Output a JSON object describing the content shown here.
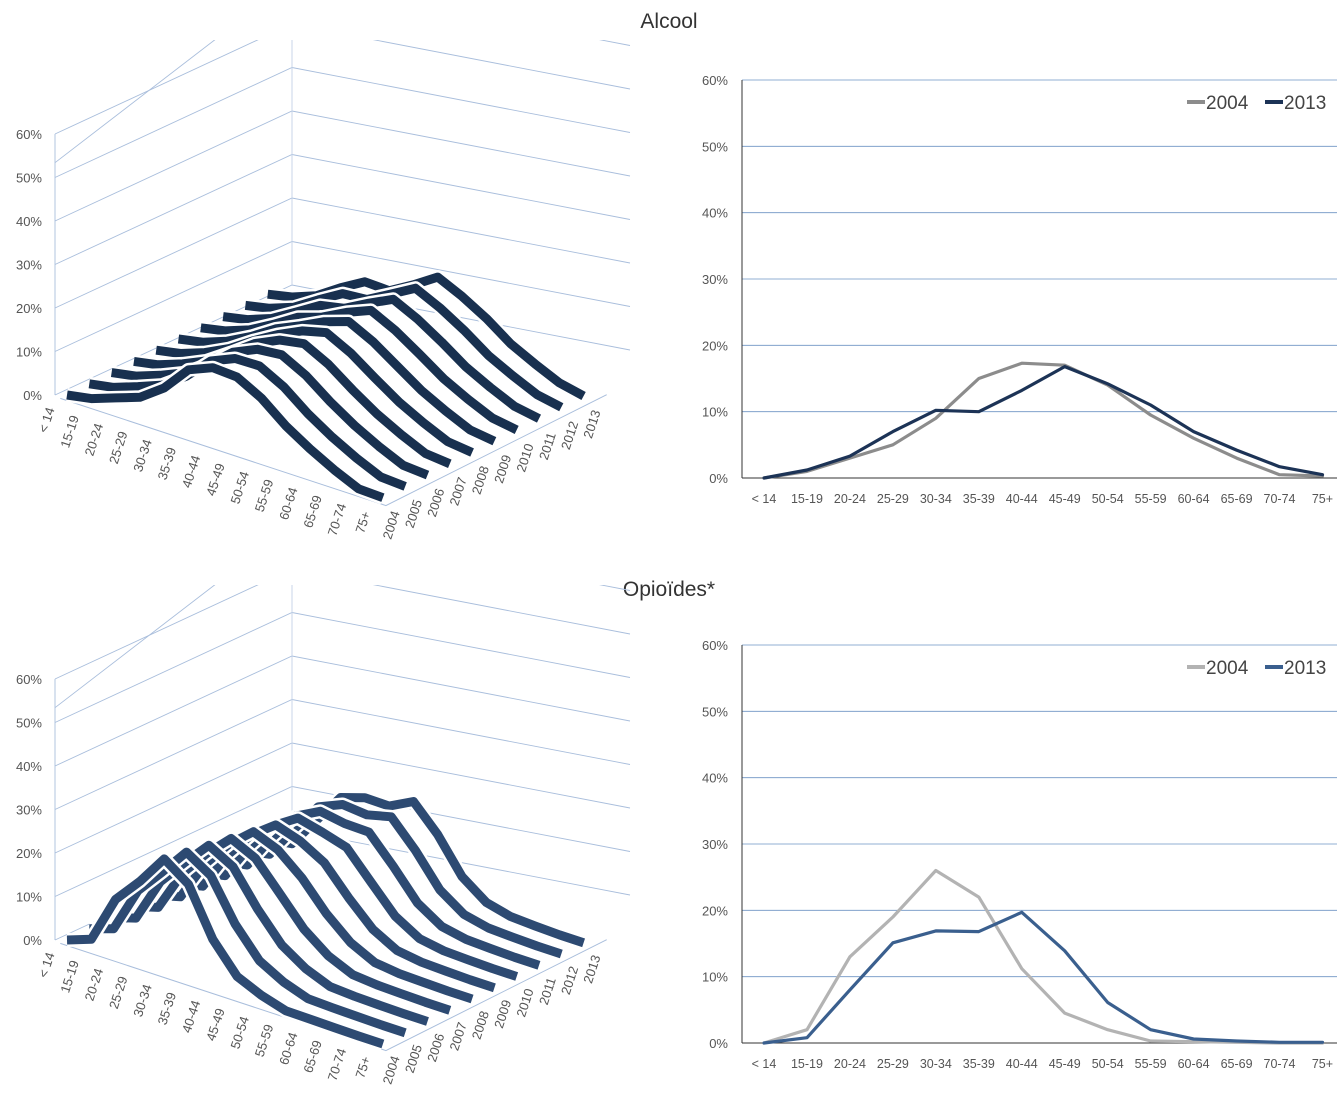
{
  "sections": [
    {
      "title": "Alcool",
      "line_colors": {
        "2004": "#8c8c8c",
        "2013": "#1c3356"
      },
      "ribbon_color": "#18304f"
    },
    {
      "title": "Opioïdes*",
      "line_colors": {
        "2004": "#b3b3b3",
        "2013": "#3a5f8e"
      },
      "ribbon_color": "#2d4a72"
    }
  ],
  "chart_data": [
    {
      "type": "surface3d",
      "section": "Alcool",
      "categories": [
        "< 14",
        "15-19",
        "20-24",
        "25-29",
        "30-34",
        "35-39",
        "40-44",
        "45-49",
        "50-54",
        "55-59",
        "60-64",
        "65-69",
        "70-74",
        "75+"
      ],
      "years": [
        "2004",
        "2005",
        "2006",
        "2007",
        "2008",
        "2009",
        "2010",
        "2011",
        "2012",
        "2013"
      ],
      "yticks": [
        "0%",
        "10%",
        "20%",
        "30%",
        "40%",
        "50%",
        "60%"
      ],
      "ylim": [
        0,
        60
      ]
    },
    {
      "type": "line",
      "section": "Alcool",
      "categories": [
        "< 14",
        "15-19",
        "20-24",
        "25-29",
        "30-34",
        "35-39",
        "40-44",
        "45-49",
        "50-54",
        "55-59",
        "60-64",
        "65-69",
        "70-74",
        "75+"
      ],
      "yticks": [
        "0%",
        "10%",
        "20%",
        "30%",
        "40%",
        "50%",
        "60%"
      ],
      "ylim": [
        0,
        60
      ],
      "legend": "top-right",
      "series": [
        {
          "name": "2004",
          "values": [
            0,
            1,
            3,
            5,
            9,
            15,
            17.3,
            17,
            14,
            9.5,
            6,
            3,
            0.5,
            0.3
          ]
        },
        {
          "name": "2013",
          "values": [
            0,
            1.2,
            3.3,
            7,
            10.2,
            10,
            13.2,
            16.8,
            14.2,
            11,
            7,
            4.2,
            1.7,
            0.5
          ]
        }
      ]
    },
    {
      "type": "surface3d",
      "section": "Opioïdes*",
      "categories": [
        "< 14",
        "15-19",
        "20-24",
        "25-29",
        "30-34",
        "35-39",
        "40-44",
        "45-49",
        "50-54",
        "55-59",
        "60-64",
        "65-69",
        "70-74",
        "75+"
      ],
      "years": [
        "2004",
        "2005",
        "2006",
        "2007",
        "2008",
        "2009",
        "2010",
        "2011",
        "2012",
        "2013"
      ],
      "yticks": [
        "0%",
        "10%",
        "20%",
        "30%",
        "40%",
        "50%",
        "60%"
      ],
      "ylim": [
        0,
        60
      ]
    },
    {
      "type": "line",
      "section": "Opioïdes*",
      "categories": [
        "< 14",
        "15-19",
        "20-24",
        "25-29",
        "30-34",
        "35-39",
        "40-44",
        "45-49",
        "50-54",
        "55-59",
        "60-64",
        "65-69",
        "70-74",
        "75+"
      ],
      "yticks": [
        "0%",
        "10%",
        "20%",
        "30%",
        "40%",
        "50%",
        "60%"
      ],
      "ylim": [
        0,
        60
      ],
      "legend": "top-right",
      "series": [
        {
          "name": "2004",
          "values": [
            0,
            2,
            13,
            19,
            26,
            22,
            11.2,
            4.5,
            2,
            0.3,
            0.2,
            0.1,
            0,
            0
          ]
        },
        {
          "name": "2013",
          "values": [
            0,
            0.8,
            8,
            15.1,
            16.9,
            16.8,
            19.7,
            13.9,
            6.1,
            2,
            0.6,
            0.3,
            0.1,
            0.1
          ]
        }
      ]
    }
  ]
}
